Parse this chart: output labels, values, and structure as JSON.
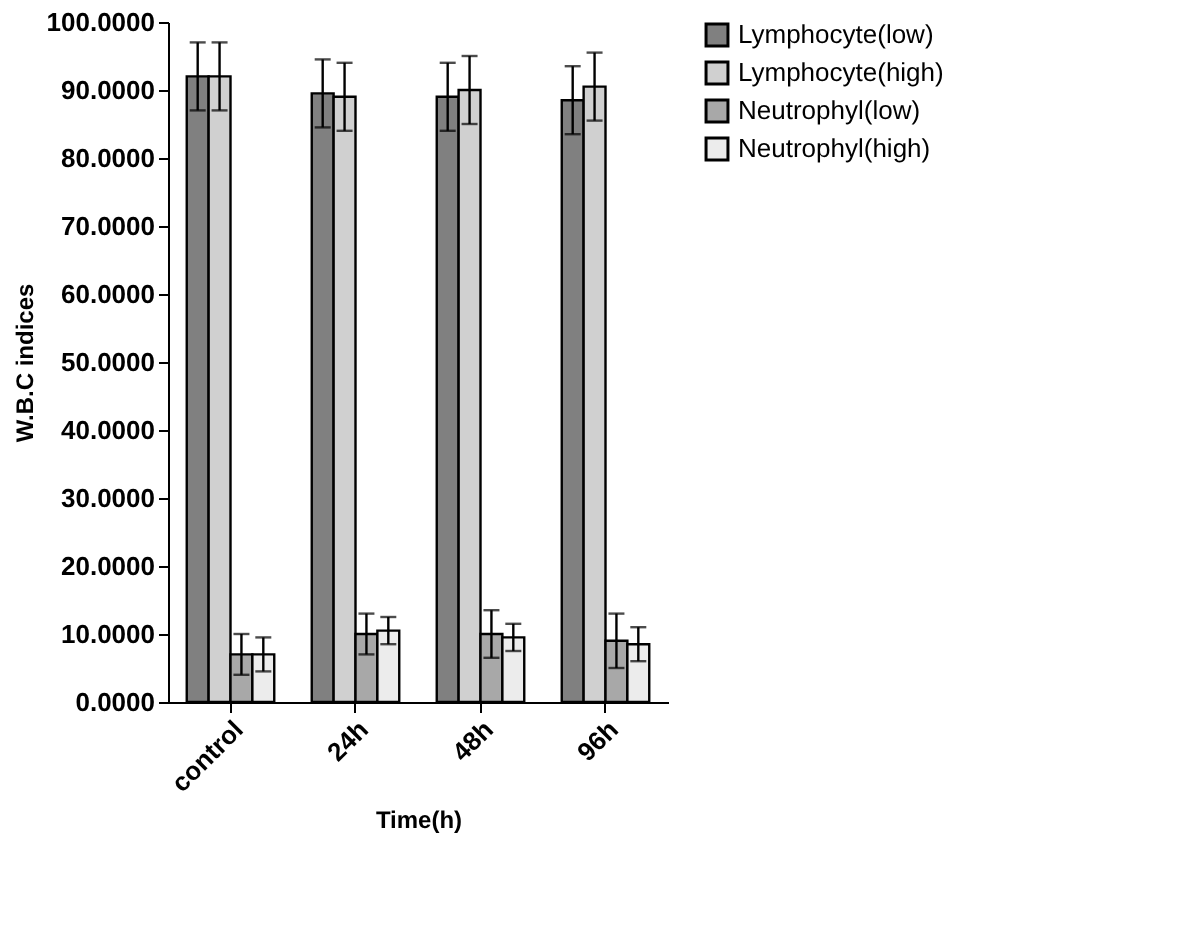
{
  "chart_data": {
    "type": "bar",
    "xlabel": "Time(h)",
    "ylabel": "W.B.C indices",
    "categories": [
      "control",
      "24h",
      "48h",
      "96h"
    ],
    "series": [
      {
        "name": "Lymphocyte(low)",
        "color": "#808080",
        "values": [
          92,
          89.5,
          89,
          88.5
        ],
        "errors": [
          5,
          5,
          5,
          5
        ]
      },
      {
        "name": "Lymphocyte(high)",
        "color": "#d0d0d0",
        "values": [
          92,
          89,
          90,
          90.5
        ],
        "errors": [
          5,
          5,
          5,
          5
        ]
      },
      {
        "name": "Neutrophyl(low)",
        "color": "#a8a8a8",
        "values": [
          7,
          10,
          10,
          9
        ],
        "errors": [
          3,
          3,
          3.5,
          4
        ]
      },
      {
        "name": "Neutrophyl(high)",
        "color": "#ececec",
        "values": [
          7,
          10.5,
          9.5,
          8.5
        ],
        "errors": [
          2.5,
          2,
          2,
          2.5
        ]
      }
    ],
    "ylim": [
      0,
      100
    ],
    "yticks": [
      {
        "value": 0,
        "label": "0.0000"
      },
      {
        "value": 10,
        "label": "10.0000"
      },
      {
        "value": 20,
        "label": "20.0000"
      },
      {
        "value": 30,
        "label": "30.0000"
      },
      {
        "value": 40,
        "label": "40.0000"
      },
      {
        "value": 50,
        "label": "50.0000"
      },
      {
        "value": 60,
        "label": "60.0000"
      },
      {
        "value": 70,
        "label": "70.0000"
      },
      {
        "value": 80,
        "label": "80.0000"
      },
      {
        "value": 90,
        "label": "90.0000"
      },
      {
        "value": 100,
        "label": "100.0000"
      }
    ],
    "grid": false,
    "legend": "right"
  }
}
